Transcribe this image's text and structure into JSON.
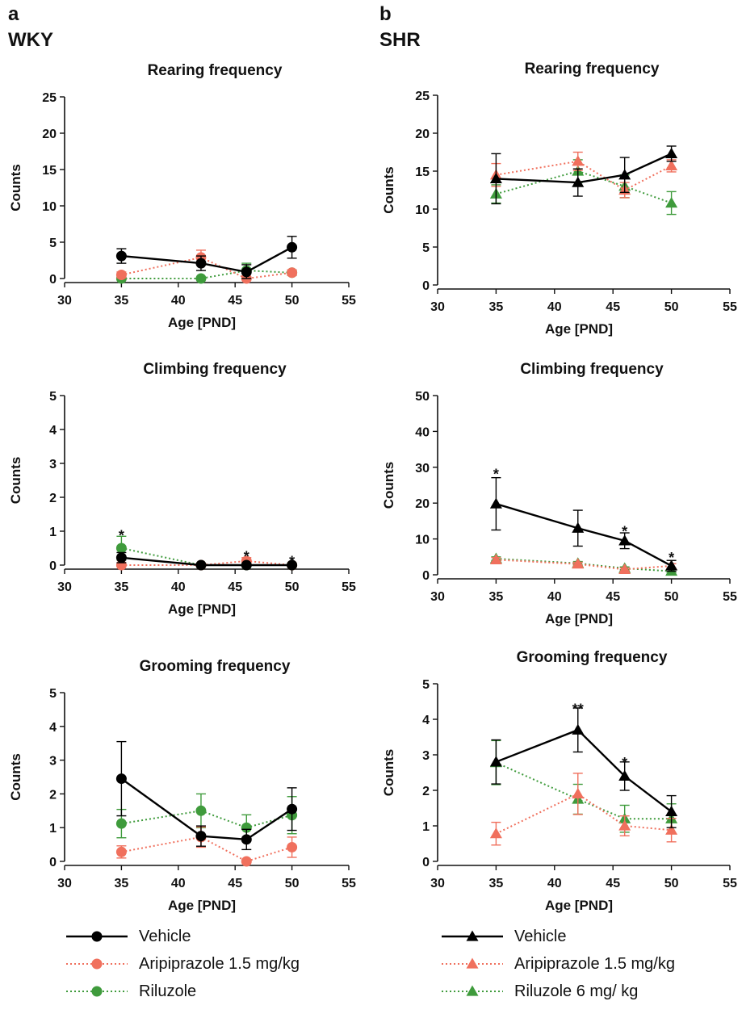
{
  "panels": {
    "a": {
      "letter": "a",
      "group": "WKY"
    },
    "b": {
      "letter": "b",
      "group": "SHR"
    }
  },
  "legends": {
    "a": [
      {
        "label": "Vehicle",
        "color": "#000000",
        "marker": "circle",
        "dash": "solid"
      },
      {
        "label": "Aripiprazole 1.5 mg/kg",
        "color": "#f0705d",
        "marker": "circle",
        "dash": "dotted"
      },
      {
        "label": "Riluzole",
        "color": "#3f9b3c",
        "marker": "circle",
        "dash": "dotted"
      }
    ],
    "b": [
      {
        "label": "Vehicle",
        "color": "#000000",
        "marker": "triangle",
        "dash": "solid"
      },
      {
        "label": "Aripiprazole 1.5 mg/kg",
        "color": "#f0705d",
        "marker": "triangle",
        "dash": "dotted"
      },
      {
        "label": "Riluzole 6 mg/ kg",
        "color": "#3f9b3c",
        "marker": "triangle",
        "dash": "dotted"
      }
    ]
  },
  "chart_data": [
    {
      "id": "wky-rearing",
      "panel": "a",
      "type": "line",
      "title": "Rearing frequency",
      "xlabel": "Age [PND]",
      "ylabel": "Counts",
      "xlim": [
        30,
        55
      ],
      "xticks": [
        30,
        35,
        40,
        45,
        50,
        55
      ],
      "ylim": [
        0,
        25
      ],
      "yticks": [
        0,
        5,
        10,
        15,
        20,
        25
      ],
      "grid": false,
      "marker": "circle",
      "x": [
        35,
        42,
        46,
        50
      ],
      "series": [
        {
          "name": "Vehicle",
          "color": "#000000",
          "dash": "solid",
          "values": [
            3.1,
            2.1,
            0.9,
            4.3
          ],
          "err": [
            1.0,
            1.0,
            1.0,
            1.5
          ]
        },
        {
          "name": "Aripiprazole 1.5 mg/kg",
          "color": "#f0705d",
          "dash": "dotted",
          "values": [
            0.5,
            2.9,
            0.0,
            0.8
          ],
          "err": [
            0.4,
            1.0,
            0.2,
            0.4
          ]
        },
        {
          "name": "Riluzole",
          "color": "#3f9b3c",
          "dash": "dotted",
          "values": [
            0.0,
            0.0,
            1.1,
            0.8
          ],
          "err": [
            0.2,
            0.2,
            1.0,
            0.3
          ]
        }
      ],
      "annotations": []
    },
    {
      "id": "wky-climbing",
      "panel": "a",
      "type": "line",
      "title": "Climbing frequency",
      "xlabel": "Age [PND]",
      "ylabel": "Counts",
      "xlim": [
        30,
        55
      ],
      "xticks": [
        30,
        35,
        40,
        45,
        50,
        55
      ],
      "ylim": [
        0,
        5
      ],
      "yticks": [
        0,
        1,
        2,
        3,
        4,
        5
      ],
      "grid": false,
      "marker": "circle",
      "x": [
        35,
        42,
        46,
        50
      ],
      "series": [
        {
          "name": "Vehicle",
          "color": "#000000",
          "dash": "solid",
          "values": [
            0.22,
            0.0,
            0.0,
            0.0
          ],
          "err": [
            0.15,
            0.0,
            0.0,
            0.0
          ]
        },
        {
          "name": "Aripiprazole 1.5 mg/kg",
          "color": "#f0705d",
          "dash": "dotted",
          "values": [
            0.0,
            0.0,
            0.12,
            0.0
          ],
          "err": [
            0.0,
            0.0,
            0.1,
            0.0
          ]
        },
        {
          "name": "Riluzole",
          "color": "#3f9b3c",
          "dash": "dotted",
          "values": [
            0.5,
            0.0,
            0.0,
            0.0
          ],
          "err": [
            0.35,
            0.0,
            0.0,
            0.0
          ]
        }
      ],
      "annotations": [
        {
          "x": 35,
          "y": 0.92,
          "text": "*"
        },
        {
          "x": 46,
          "y": 0.3,
          "text": "*"
        },
        {
          "x": 50,
          "y": 0.15,
          "text": "*"
        }
      ]
    },
    {
      "id": "wky-grooming",
      "panel": "a",
      "type": "line",
      "title": "Grooming frequency",
      "xlabel": "Age [PND]",
      "ylabel": "Counts",
      "xlim": [
        30,
        55
      ],
      "xticks": [
        30,
        35,
        40,
        45,
        50,
        55
      ],
      "ylim": [
        0,
        5
      ],
      "yticks": [
        0,
        1,
        2,
        3,
        4,
        5
      ],
      "grid": false,
      "marker": "circle",
      "x": [
        35,
        42,
        46,
        50
      ],
      "series": [
        {
          "name": "Vehicle",
          "color": "#000000",
          "dash": "solid",
          "values": [
            2.45,
            0.75,
            0.65,
            1.55
          ],
          "err": [
            1.1,
            0.3,
            0.3,
            0.63
          ]
        },
        {
          "name": "Aripiprazole 1.5 mg/kg",
          "color": "#f0705d",
          "dash": "dotted",
          "values": [
            0.28,
            0.72,
            0.0,
            0.42
          ],
          "err": [
            0.18,
            0.3,
            0.05,
            0.3
          ]
        },
        {
          "name": "Riluzole",
          "color": "#3f9b3c",
          "dash": "dotted",
          "values": [
            1.12,
            1.5,
            1.0,
            1.37
          ],
          "err": [
            0.42,
            0.5,
            0.38,
            0.55
          ]
        }
      ],
      "annotations": []
    },
    {
      "id": "shr-rearing",
      "panel": "b",
      "type": "line",
      "title": "Rearing frequency",
      "xlabel": "Age [PND]",
      "ylabel": "Counts",
      "xlim": [
        30,
        55
      ],
      "xticks": [
        30,
        35,
        40,
        45,
        50,
        55
      ],
      "ylim": [
        0,
        25
      ],
      "yticks": [
        0,
        5,
        10,
        15,
        20,
        25
      ],
      "grid": false,
      "marker": "triangle",
      "x": [
        35,
        42,
        46,
        50
      ],
      "series": [
        {
          "name": "Vehicle",
          "color": "#000000",
          "dash": "solid",
          "values": [
            14.0,
            13.5,
            14.5,
            17.3
          ],
          "err": [
            3.3,
            1.8,
            2.3,
            1.0
          ]
        },
        {
          "name": "Aripiprazole 1.5 mg/kg",
          "color": "#f0705d",
          "dash": "dotted",
          "values": [
            14.5,
            16.3,
            12.5,
            15.7
          ],
          "err": [
            1.5,
            1.2,
            1.0,
            0.8
          ]
        },
        {
          "name": "Riluzole 6 mg/ kg",
          "color": "#3f9b3c",
          "dash": "dotted",
          "values": [
            12.0,
            15.0,
            13.0,
            10.8
          ],
          "err": [
            1.2,
            1.5,
            1.5,
            1.5
          ]
        }
      ],
      "annotations": []
    },
    {
      "id": "shr-climbing",
      "panel": "b",
      "type": "line",
      "title": "Climbing frequency",
      "xlabel": "Age [PND]",
      "ylabel": "Counts",
      "xlim": [
        30,
        55
      ],
      "xticks": [
        30,
        35,
        40,
        45,
        50,
        55
      ],
      "ylim": [
        0,
        50
      ],
      "yticks": [
        0,
        10,
        20,
        30,
        40,
        50
      ],
      "grid": false,
      "marker": "triangle",
      "x": [
        35,
        42,
        46,
        50
      ],
      "series": [
        {
          "name": "Vehicle",
          "color": "#000000",
          "dash": "solid",
          "values": [
            19.8,
            13.0,
            9.5,
            2.5
          ],
          "err": [
            7.3,
            5.0,
            2.2,
            1.5
          ]
        },
        {
          "name": "Aripiprazole 1.5 mg/kg",
          "color": "#f0705d",
          "dash": "dotted",
          "values": [
            4.2,
            3.0,
            1.5,
            2.5
          ],
          "err": [
            0.6,
            0.5,
            0.4,
            0.6
          ]
        },
        {
          "name": "Riluzole 6 mg/ kg",
          "color": "#3f9b3c",
          "dash": "dotted",
          "values": [
            4.5,
            3.2,
            1.8,
            1.0
          ],
          "err": [
            0.5,
            0.5,
            0.4,
            0.4
          ]
        }
      ],
      "annotations": [
        {
          "x": 35,
          "y": 28.5,
          "text": "*"
        },
        {
          "x": 46,
          "y": 12.5,
          "text": "*"
        },
        {
          "x": 50,
          "y": 5.2,
          "text": "*"
        }
      ]
    },
    {
      "id": "shr-grooming",
      "panel": "b",
      "type": "line",
      "title": "Grooming frequency",
      "xlabel": "Age [PND]",
      "ylabel": "Counts",
      "xlim": [
        30,
        55
      ],
      "xticks": [
        30,
        35,
        40,
        45,
        50,
        55
      ],
      "ylim": [
        0,
        5
      ],
      "yticks": [
        0,
        1,
        2,
        3,
        4,
        5
      ],
      "grid": false,
      "marker": "triangle",
      "x": [
        35,
        42,
        46,
        50
      ],
      "series": [
        {
          "name": "Vehicle",
          "color": "#000000",
          "dash": "solid",
          "values": [
            2.8,
            3.7,
            2.4,
            1.4
          ],
          "err": [
            0.62,
            0.62,
            0.4,
            0.45
          ]
        },
        {
          "name": "Aripiprazole 1.5 mg/kg",
          "color": "#f0705d",
          "dash": "dotted",
          "values": [
            0.78,
            1.9,
            1.0,
            0.88
          ],
          "err": [
            0.32,
            0.58,
            0.28,
            0.33
          ]
        },
        {
          "name": "Riluzole 6 mg/ kg",
          "color": "#3f9b3c",
          "dash": "dotted",
          "values": [
            2.78,
            1.75,
            1.2,
            1.2
          ],
          "err": [
            0.62,
            0.42,
            0.38,
            0.42
          ]
        }
      ],
      "annotations": [
        {
          "x": 42,
          "y": 4.33,
          "text": "**"
        },
        {
          "x": 46,
          "y": 2.82,
          "text": "*"
        }
      ]
    }
  ]
}
